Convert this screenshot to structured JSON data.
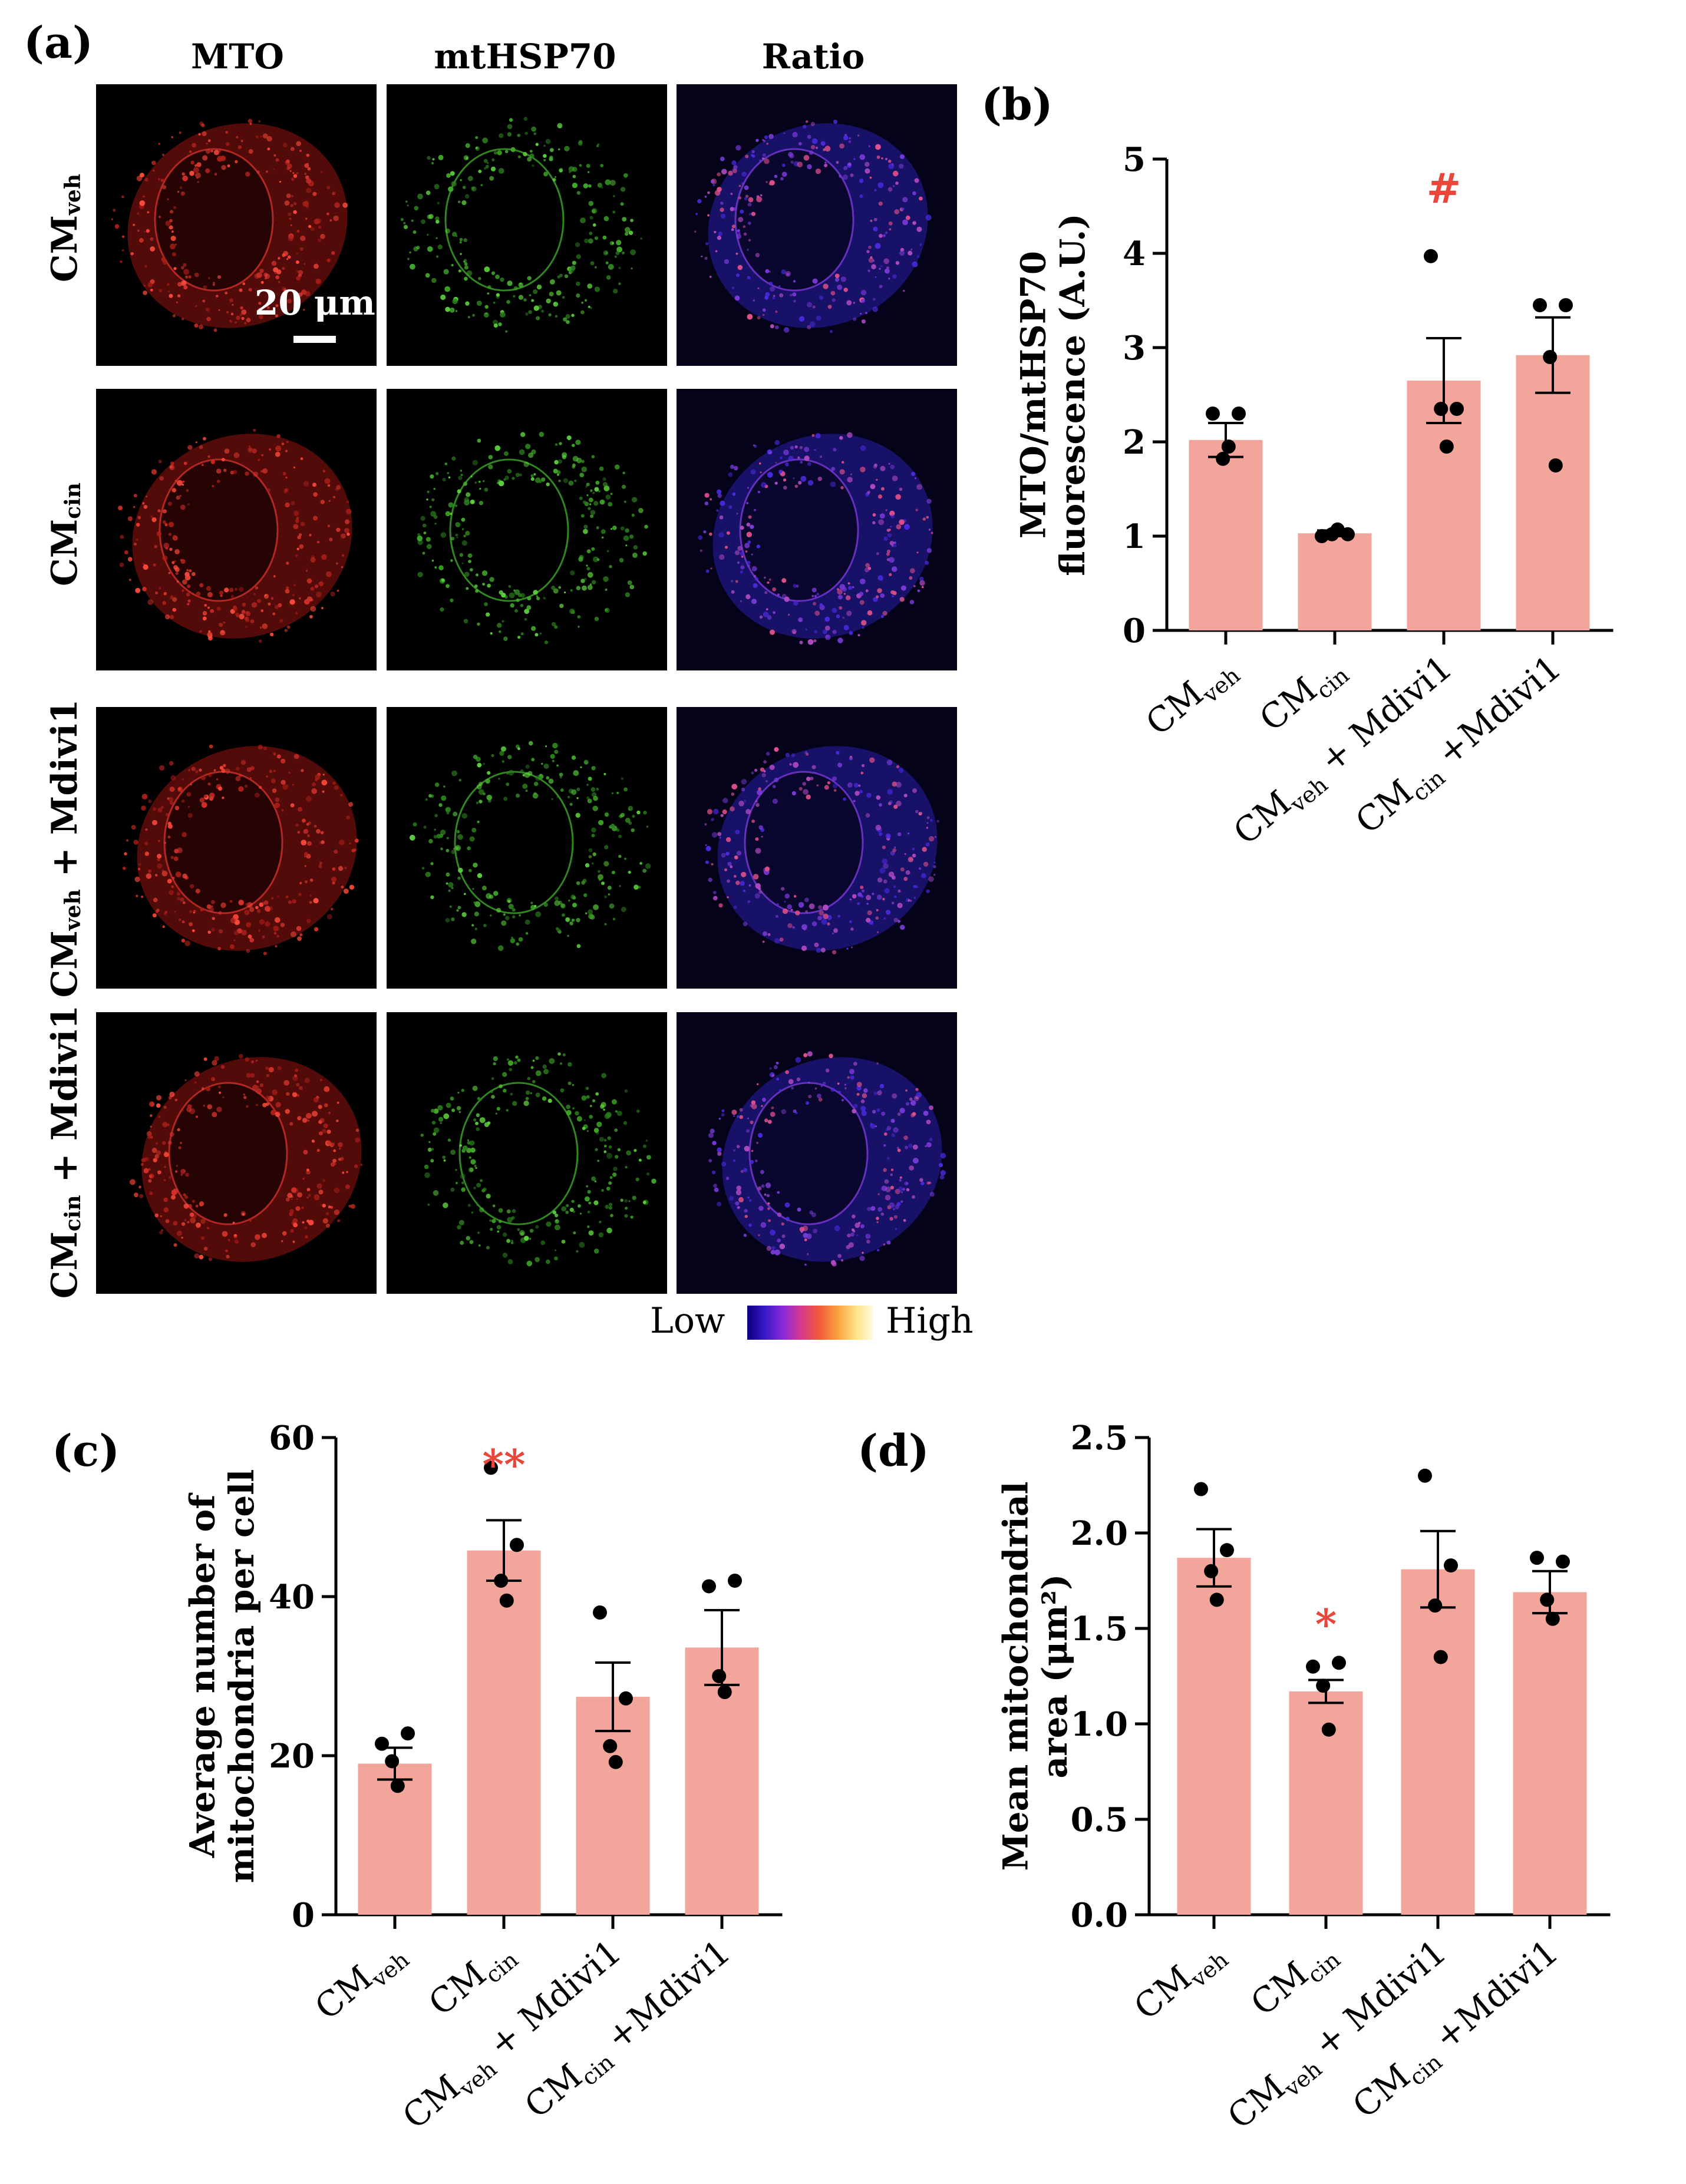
{
  "figure": {
    "panel_letters": {
      "a": "(a)",
      "b": "(b)",
      "c": "(c)",
      "d": "(d)"
    },
    "column_titles": [
      "MTO",
      "mtHSP70",
      "Ratio"
    ],
    "row_labels": [
      {
        "main": "CM",
        "sub": "veh",
        "suffix": ""
      },
      {
        "main": "CM",
        "sub": "cin",
        "suffix": ""
      },
      {
        "main": "CM",
        "sub": "veh",
        "suffix": " + Mdivi1"
      },
      {
        "main": "CM",
        "sub": "cin",
        "suffix": " + Mdivi1"
      }
    ],
    "scale_bar": "20 μm",
    "colorbar": {
      "low": "Low",
      "high": "High"
    }
  },
  "chart_data": [
    {
      "id": "b",
      "type": "bar",
      "categories": [
        {
          "main": "CM",
          "sub": "veh",
          "suffix": ""
        },
        {
          "main": "CM",
          "sub": "cin",
          "suffix": ""
        },
        {
          "main": "CM",
          "sub": "veh",
          "suffix": " + Mdivi1"
        },
        {
          "main": "CM",
          "sub": "cin",
          "suffix": " +Mdivi1"
        }
      ],
      "values": [
        2.02,
        1.03,
        2.65,
        2.92
      ],
      "sem": [
        0.18,
        0.03,
        0.45,
        0.4
      ],
      "points": [
        [
          2.3,
          2.3,
          1.82,
          1.95
        ],
        [
          1.0,
          1.02,
          1.02,
          1.07
        ],
        [
          3.97,
          2.35,
          2.35,
          1.95
        ],
        [
          3.45,
          3.45,
          2.9,
          1.75
        ]
      ],
      "annotations": [
        "",
        "",
        "#",
        ""
      ],
      "ylabel_lines": [
        "MTO/mtHSP70",
        "fluorescence (A.U.)"
      ],
      "ylim": [
        0,
        5
      ],
      "yticks": [
        "0",
        "1",
        "2",
        "3",
        "4",
        "5"
      ],
      "bar_color": "#f2a59b",
      "annotation_color": "#e8473a"
    },
    {
      "id": "c",
      "type": "bar",
      "categories": [
        {
          "main": "CM",
          "sub": "veh",
          "suffix": ""
        },
        {
          "main": "CM",
          "sub": "cin",
          "suffix": ""
        },
        {
          "main": "CM",
          "sub": "veh",
          "suffix": " + Mdivi1"
        },
        {
          "main": "CM",
          "sub": "cin",
          "suffix": " +Mdivi1"
        }
      ],
      "values": [
        19.0,
        45.8,
        27.4,
        33.6
      ],
      "sem": [
        2.0,
        3.8,
        4.3,
        4.7
      ],
      "points": [
        [
          21.5,
          22.8,
          19.3,
          16.2
        ],
        [
          56.2,
          46.5,
          42.0,
          39.5
        ],
        [
          38.0,
          27.2,
          21.2,
          19.2
        ],
        [
          41.3,
          42.0,
          30.0,
          28.0
        ]
      ],
      "annotations": [
        "",
        "**",
        "",
        ""
      ],
      "ylabel_lines": [
        "Average number of",
        "mitochondria per cell"
      ],
      "ylim": [
        0,
        60
      ],
      "yticks": [
        "0",
        "20",
        "40",
        "60"
      ],
      "bar_color": "#f2a59b",
      "annotation_color": "#e8473a"
    },
    {
      "id": "d",
      "type": "bar",
      "categories": [
        {
          "main": "CM",
          "sub": "veh",
          "suffix": ""
        },
        {
          "main": "CM",
          "sub": "cin",
          "suffix": ""
        },
        {
          "main": "CM",
          "sub": "veh",
          "suffix": " + Mdivi1"
        },
        {
          "main": "CM",
          "sub": "cin",
          "suffix": " +Mdivi1"
        }
      ],
      "values": [
        1.87,
        1.17,
        1.81,
        1.69
      ],
      "sem": [
        0.15,
        0.06,
        0.2,
        0.11
      ],
      "points": [
        [
          2.23,
          1.91,
          1.8,
          1.65
        ],
        [
          1.3,
          1.32,
          1.2,
          0.97
        ],
        [
          2.3,
          1.83,
          1.62,
          1.35
        ],
        [
          1.87,
          1.85,
          1.65,
          1.55
        ]
      ],
      "annotations": [
        "",
        "*",
        "",
        ""
      ],
      "ylabel_lines": [
        "Mean mitochondrial",
        "area (μm²)"
      ],
      "ylim": [
        0,
        2.5
      ],
      "yticks": [
        "0.0",
        "0.5",
        "1.0",
        "1.5",
        "2.0",
        "2.5"
      ],
      "bar_color": "#f2a59b",
      "annotation_color": "#e8473a"
    }
  ]
}
